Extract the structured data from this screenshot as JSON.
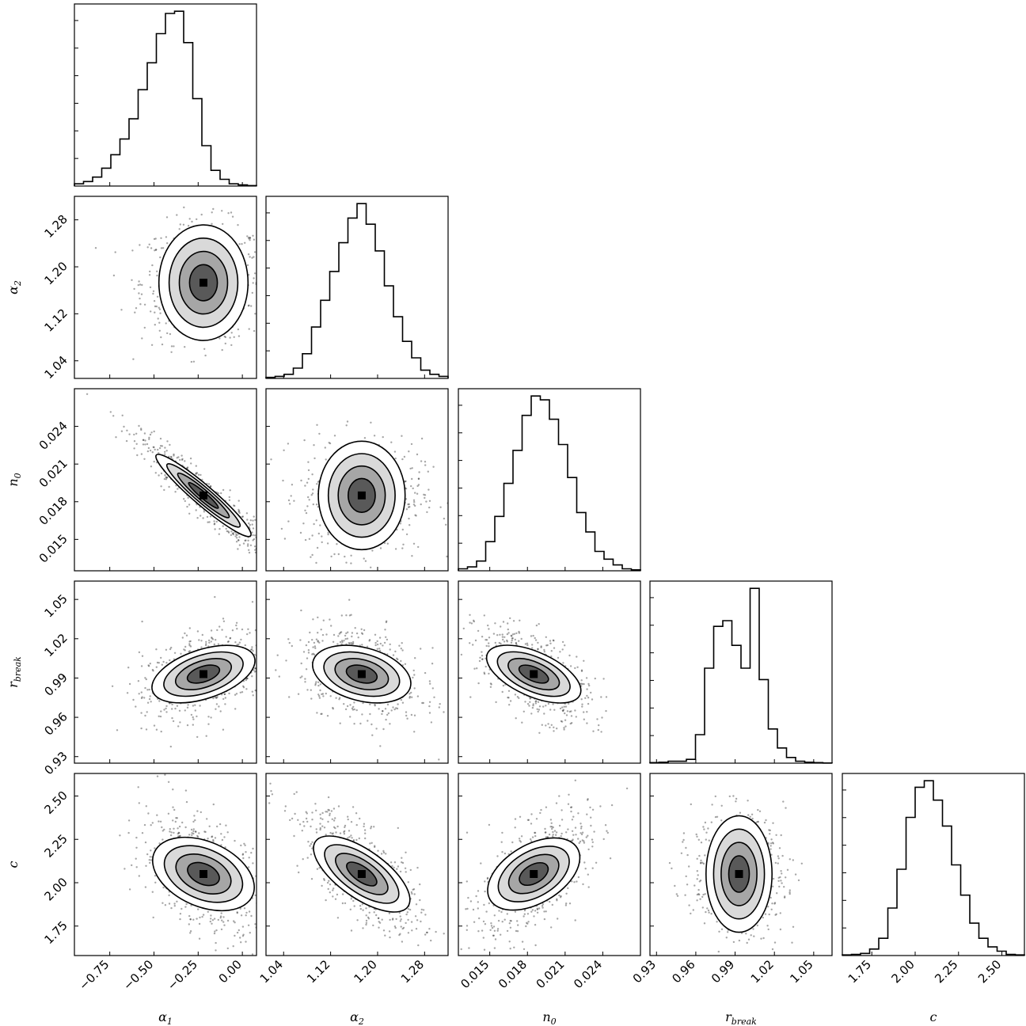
{
  "chart_data": {
    "type": "corner",
    "params": [
      {
        "key": "a1",
        "label": "α",
        "sub": "1",
        "range": [
          -0.95,
          0.08
        ],
        "ticks": [
          -0.75,
          -0.5,
          -0.25,
          0.0
        ],
        "tick_labels": [
          "−0.75",
          "−0.50",
          "−0.25",
          "0.00"
        ],
        "mean": -0.22,
        "sd": 0.14
      },
      {
        "key": "a2",
        "label": "α",
        "sub": "2",
        "range": [
          1.01,
          1.32
        ],
        "ticks": [
          1.04,
          1.12,
          1.2,
          1.28
        ],
        "tick_labels": [
          "1.04",
          "1.12",
          "1.20",
          "1.28"
        ],
        "mean": 1.173,
        "sd": 0.041
      },
      {
        "key": "n0",
        "label": "n",
        "sub": "0",
        "range": [
          0.0125,
          0.027
        ],
        "ticks": [
          0.015,
          0.018,
          0.021,
          0.024
        ],
        "tick_labels": [
          "0.015",
          "0.018",
          "0.021",
          "0.024"
        ],
        "mean": 0.0185,
        "sd": 0.0018
      },
      {
        "key": "rb",
        "label": "r",
        "sub": "break",
        "range": [
          0.925,
          1.064
        ],
        "ticks": [
          0.93,
          0.96,
          0.99,
          1.02,
          1.05
        ],
        "tick_labels": [
          "0.93",
          "0.96",
          "0.99",
          "1.02",
          "1.05"
        ],
        "mean": 0.993,
        "sd": 0.014
      },
      {
        "key": "c",
        "label": "c",
        "sub": "",
        "range": [
          1.58,
          2.63
        ],
        "ticks": [
          1.75,
          2.0,
          2.25,
          2.5
        ],
        "tick_labels": [
          "1.75",
          "2.00",
          "2.25",
          "2.50"
        ],
        "mean": 2.05,
        "sd": 0.14
      }
    ],
    "histograms": {
      "a1": [
        1,
        2,
        4,
        8,
        14,
        21,
        30,
        43,
        55,
        68,
        77,
        78,
        64,
        39,
        18,
        7,
        3,
        1,
        0.5,
        0.2
      ],
      "a2": [
        0.5,
        1,
        2,
        5,
        12,
        25,
        38,
        52,
        66,
        78,
        85,
        75,
        62,
        45,
        30,
        18,
        10,
        4,
        2,
        1
      ],
      "n0": [
        1,
        2,
        5,
        15,
        28,
        45,
        62,
        80,
        90,
        88,
        78,
        65,
        48,
        30,
        20,
        10,
        6,
        3,
        1,
        0.5
      ],
      "rb": [
        0.3,
        0.5,
        1,
        1,
        2,
        15,
        50,
        72,
        75,
        62,
        50,
        92,
        44,
        18,
        8,
        3,
        1,
        0.5,
        0.3,
        0.1
      ],
      "c": [
        0.3,
        0.5,
        1,
        3,
        8,
        22,
        40,
        64,
        78,
        81,
        72,
        60,
        42,
        28,
        15,
        8,
        4,
        2,
        0.5,
        0.3
      ]
    },
    "correlations": {
      "a1_a2": 0.0,
      "a1_n0": -0.94,
      "a2_n0": 0.0,
      "a1_rb": 0.45,
      "a2_rb": -0.35,
      "n0_rb": -0.55,
      "a1_c": -0.45,
      "a2_c": -0.7,
      "n0_c": 0.55,
      "rb_c": 0.0
    },
    "contour_levels": [
      0.5,
      1.0,
      1.5,
      2.0
    ],
    "grid": false,
    "legend": "none"
  }
}
